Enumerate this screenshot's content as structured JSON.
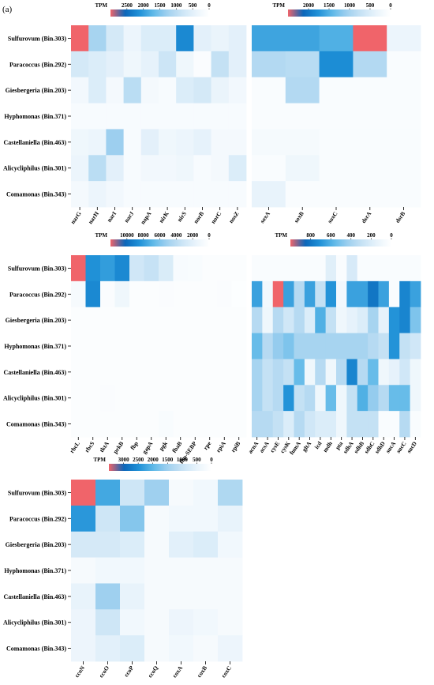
{
  "figure": {
    "panel_label": "(a)"
  },
  "colors": {
    "scale": [
      "#ffffff",
      "#e8f3fb",
      "#c8e3f5",
      "#9fd0ef",
      "#5db8e8",
      "#1d8fd6",
      "#0b65b8",
      "#f0646a"
    ]
  },
  "chart_data": [
    {
      "type": "heatmap",
      "colorbar": {
        "title": "TPM",
        "ticks": [
          2500,
          2000,
          1500,
          1000,
          500,
          0
        ],
        "max": 3000
      },
      "rows": [
        "Sulfurovum (Bin.303)",
        "Paracoccus (Bin.292)",
        "Giesbergeria (Bin.203)",
        "Hyphomonas (Bin.371)",
        "Castellaniella (Bin.463)",
        "Alicycliphilus (Bin.301)",
        "Comamonas (Bin.343)"
      ],
      "columns": [
        "narG",
        "narH",
        "narI",
        "narJ",
        "napA",
        "nirK",
        "nirS",
        "norB",
        "norC",
        "nosZ"
      ],
      "values": [
        [
          3000,
          1200,
          700,
          350,
          600,
          600,
          2200,
          500,
          400,
          500
        ],
        [
          700,
          600,
          500,
          300,
          450,
          800,
          300,
          100,
          900,
          500
        ],
        [
          250,
          600,
          200,
          1000,
          200,
          150,
          600,
          700,
          400,
          250
        ],
        [
          150,
          150,
          150,
          150,
          150,
          150,
          150,
          150,
          150,
          150
        ],
        [
          300,
          350,
          1300,
          150,
          500,
          300,
          350,
          450,
          200,
          200
        ],
        [
          350,
          1000,
          500,
          150,
          250,
          250,
          300,
          150,
          200,
          600
        ],
        [
          200,
          350,
          250,
          150,
          150,
          150,
          150,
          150,
          150,
          150
        ]
      ]
    },
    {
      "type": "heatmap",
      "colorbar": {
        "title": "TPM",
        "ticks": [
          2000,
          1500,
          1000,
          500,
          0
        ],
        "max": 2500
      },
      "rows": [
        "Sulfurovum (Bin.303)",
        "Paracoccus (Bin.292)",
        "Giesbergeria (Bin.203)",
        "Hyphomonas (Bin.371)",
        "Castellaniella (Bin.463)",
        "Alicycliphilus (Bin.301)",
        "Comamonas (Bin.343)"
      ],
      "columns": [
        "soxA",
        "soxB",
        "soxC",
        "dsrA",
        "dsrB"
      ],
      "values": [
        [
          1600,
          1600,
          1500,
          2500,
          300
        ],
        [
          900,
          850,
          1800,
          900,
          100
        ],
        [
          100,
          900,
          100,
          100,
          100
        ],
        [
          100,
          100,
          100,
          100,
          100
        ],
        [
          150,
          150,
          100,
          100,
          100
        ],
        [
          100,
          250,
          100,
          100,
          100
        ],
        [
          350,
          100,
          100,
          100,
          100
        ]
      ]
    },
    {
      "type": "heatmap",
      "colorbar": {
        "title": "TPM",
        "ticks": [
          10000,
          8000,
          6000,
          4000,
          2000,
          0
        ],
        "max": 12000
      },
      "rows": [
        "Sulfurovum (Bin.303)",
        "Paracoccus (Bin.292)",
        "Giesbergeria (Bin.203)",
        "Hyphomonas (Bin.371)",
        "Castellaniella (Bin.463)",
        "Alicycliphilus (Bin.301)",
        "Comamonas (Bin.343)"
      ],
      "columns": [
        "rbcL",
        "rbcS",
        "tktA",
        "prkB",
        "fbp",
        "gapA",
        "pgk",
        "fbaB",
        "fbp-SEBP",
        "rpe",
        "rpiA",
        "rpiB"
      ],
      "values": [
        [
          12000,
          8500,
          8000,
          8800,
          3000,
          3500,
          2500,
          600,
          500,
          300,
          300,
          300
        ],
        [
          700,
          8800,
          400,
          1200,
          300,
          300,
          400,
          300,
          300,
          300,
          400,
          200
        ],
        [
          300,
          300,
          300,
          300,
          300,
          300,
          300,
          300,
          300,
          300,
          300,
          300
        ],
        [
          300,
          300,
          300,
          300,
          300,
          300,
          300,
          300,
          300,
          300,
          300,
          300
        ],
        [
          300,
          300,
          300,
          300,
          300,
          300,
          300,
          300,
          300,
          300,
          300,
          300
        ],
        [
          300,
          300,
          400,
          300,
          300,
          300,
          300,
          300,
          300,
          300,
          300,
          300
        ],
        [
          300,
          300,
          300,
          300,
          300,
          300,
          500,
          300,
          300,
          300,
          300,
          300
        ]
      ]
    },
    {
      "type": "heatmap",
      "colorbar": {
        "title": "TPM",
        "ticks": [
          800,
          600,
          400,
          200,
          0
        ],
        "max": 1000
      },
      "rows": [
        "Sulfurovum (Bin.303)",
        "Paracoccus (Bin.292)",
        "Giesbergeria (Bin.203)",
        "Hyphomonas (Bin.371)",
        "Castellaniella (Bin.463)",
        "Alicycliphilus (Bin.301)",
        "Comamonas (Bin.343)"
      ],
      "columns": [
        "acnA",
        "acsA",
        "cysE",
        "cysK",
        "fumA",
        "gltA",
        "icd",
        "mdh",
        "pta",
        "sdhA",
        "sdhB",
        "sdhC",
        "sdhD",
        "sucA",
        "sucC",
        "sucD"
      ],
      "values": [
        [
          40,
          40,
          40,
          40,
          40,
          40,
          40,
          180,
          40,
          220,
          40,
          40,
          40,
          40,
          40,
          40
        ],
        [
          650,
          80,
          1000,
          650,
          350,
          650,
          300,
          700,
          80,
          650,
          650,
          800,
          650,
          40,
          750,
          650
        ],
        [
          350,
          100,
          350,
          250,
          350,
          200,
          600,
          300,
          100,
          150,
          200,
          400,
          150,
          700,
          750,
          500
        ],
        [
          550,
          350,
          450,
          500,
          400,
          400,
          400,
          400,
          400,
          400,
          400,
          350,
          300,
          700,
          300,
          250
        ],
        [
          400,
          300,
          350,
          300,
          550,
          100,
          350,
          100,
          350,
          750,
          350,
          550,
          100,
          150,
          250,
          100
        ],
        [
          400,
          300,
          350,
          700,
          300,
          350,
          100,
          550,
          100,
          300,
          600,
          450,
          350,
          550,
          550,
          100
        ],
        [
          350,
          350,
          300,
          200,
          350,
          250,
          200,
          200,
          100,
          300,
          300,
          300,
          40,
          40,
          350,
          40
        ]
      ]
    },
    {
      "type": "heatmap",
      "colorbar": {
        "title": "TPM",
        "ticks": [
          3000,
          2500,
          2000,
          1500,
          1000,
          500,
          0
        ],
        "max": 3500
      },
      "rows": [
        "Sulfurovum (Bin.303)",
        "Paracoccus (Bin.292)",
        "Giesbergeria (Bin.203)",
        "Hyphomonas (Bin.371)",
        "Castellaniella (Bin.463)",
        "Alicycliphilus (Bin.301)",
        "Comamonas (Bin.343)"
      ],
      "columns": [
        "ccoN",
        "ccoO",
        "ccoP",
        "ccoQ",
        "coxA",
        "coxB",
        "coxC"
      ],
      "values": [
        [
          3500,
          2200,
          900,
          1500,
          200,
          300,
          1300
        ],
        [
          2400,
          900,
          1700,
          200,
          300,
          300,
          500
        ],
        [
          800,
          800,
          700,
          200,
          600,
          700,
          300
        ],
        [
          200,
          300,
          300,
          200,
          200,
          200,
          200
        ],
        [
          500,
          1500,
          500,
          200,
          200,
          200,
          200
        ],
        [
          400,
          900,
          300,
          200,
          400,
          300,
          200
        ],
        [
          400,
          600,
          700,
          200,
          300,
          200,
          400
        ]
      ]
    }
  ]
}
